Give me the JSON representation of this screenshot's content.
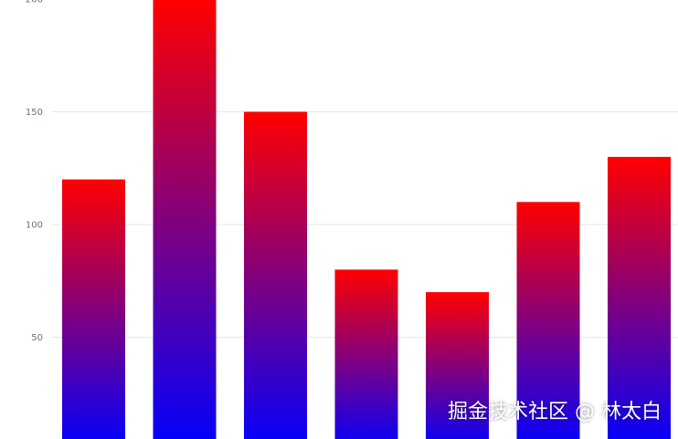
{
  "chart_data": {
    "type": "bar",
    "categories": [
      "",
      "",
      "",
      "",
      "",
      "",
      ""
    ],
    "values": [
      120,
      200,
      150,
      80,
      70,
      110,
      130
    ],
    "y_ticks": [
      50,
      100,
      150,
      200
    ],
    "ylim": [
      0,
      200
    ],
    "grid": true,
    "title": "",
    "xlabel": "",
    "ylabel": "",
    "gradient": {
      "top": "#ff0000",
      "bottom": "#0000ff"
    },
    "grid_color": "#e6e6e6"
  },
  "watermark": "掘金技术社区 @ 林太白"
}
